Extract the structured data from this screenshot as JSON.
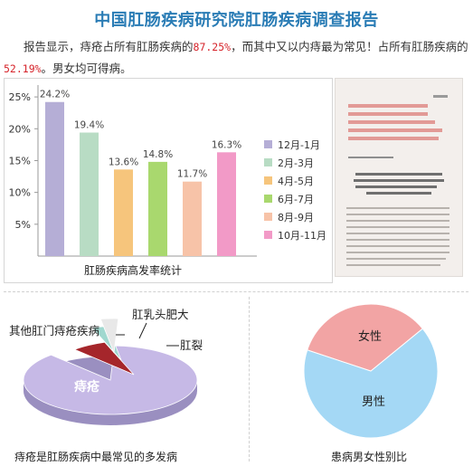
{
  "header": {
    "title": "中国肛肠疾病研究院肛肠疾病调查报告"
  },
  "intro": {
    "part1": "报告显示，痔疮占所有肛肠疾病的",
    "pct1": "87.25%",
    "part2": "，而其中又以内痔最为常见！占所有肛肠疾病的",
    "pct2": "52.19%",
    "part3": "。男女均可得病。"
  },
  "colors": {
    "title": "#2a7cb5",
    "accent_red": "#d6232a"
  },
  "chart_data": [
    {
      "type": "bar",
      "caption": "肛肠疾病高发率统计",
      "categories": [
        "12月-1月",
        "2月-3月",
        "4月-5月",
        "6月-7月",
        "8月-9月",
        "10月-11月"
      ],
      "values": [
        24.2,
        19.4,
        13.6,
        14.8,
        11.7,
        16.3
      ],
      "value_labels": [
        "24.2%",
        "19.4%",
        "13.6%",
        "14.8%",
        "11.7%",
        "16.3%"
      ],
      "colors": [
        "#b5aed6",
        "#b8dcc4",
        "#f6c57c",
        "#a9d86e",
        "#f7c3a8",
        "#f29ac7"
      ],
      "yticks": [
        "25%",
        "20%",
        "15%",
        "10%",
        "5%"
      ],
      "ytick_values": [
        25,
        20,
        15,
        10,
        5
      ],
      "ylim": [
        0,
        28
      ],
      "legend": "right"
    },
    {
      "type": "pie",
      "caption": "痔疮是肛肠疾病中最常见的多发病",
      "labels": [
        "痔疮",
        "肛裂",
        "肛乳头肥大",
        "其他肛门痔疮疾病"
      ],
      "values": [
        87.25,
        6.5,
        3.0,
        3.25
      ],
      "colors": [
        "#c6b9e6",
        "#a5262b",
        "#a0d8cf",
        "#e8e8e8"
      ]
    },
    {
      "type": "pie",
      "caption": "患病男女性别比",
      "labels": [
        "男性",
        "女性"
      ],
      "values": [
        66,
        34
      ],
      "colors": [
        "#a4d8f5",
        "#f2a4a4"
      ]
    }
  ]
}
